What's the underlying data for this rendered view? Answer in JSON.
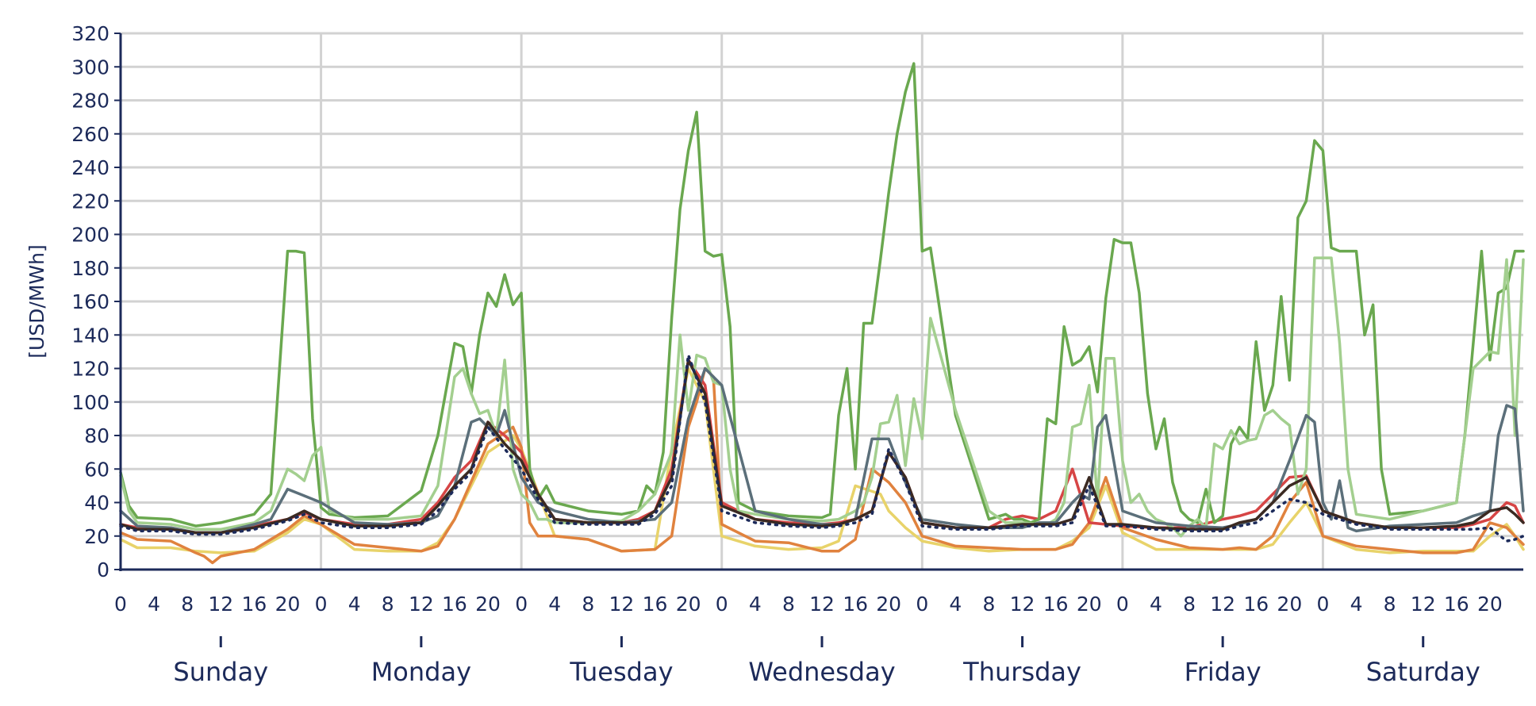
{
  "chart_data": {
    "type": "line",
    "ylabel": "[USD/MWh]",
    "ylim": [
      0,
      320
    ],
    "yticks": [
      0,
      20,
      40,
      60,
      80,
      100,
      120,
      140,
      160,
      180,
      200,
      220,
      240,
      260,
      280,
      300,
      320
    ],
    "hour_ticks": [
      "0",
      "4",
      "8",
      "12",
      "16",
      "20"
    ],
    "days": [
      "Sunday",
      "Monday",
      "Tuesday",
      "Wednesday",
      "Thursday",
      "Friday",
      "Saturday"
    ],
    "hours_per_day": 24,
    "grid": "on",
    "legend": "none",
    "series": [
      {
        "color": "#e8d36a",
        "style": "solid",
        "x": [
          0,
          2,
          6,
          9,
          12,
          16,
          20,
          22,
          24,
          28,
          32,
          36,
          38,
          40,
          44,
          47,
          48,
          52,
          56,
          60,
          64,
          66,
          68,
          70,
          72,
          76,
          80,
          84,
          86,
          88,
          91,
          92,
          94,
          96,
          100,
          104,
          108,
          112,
          114,
          116,
          118,
          120,
          124,
          128,
          132,
          136,
          138,
          140,
          142,
          144,
          148,
          152,
          156,
          160,
          162,
          164,
          166,
          167,
          168
        ],
        "y": [
          18,
          13,
          13,
          11,
          10,
          11,
          22,
          30,
          27,
          12,
          11,
          11,
          16,
          30,
          70,
          80,
          72,
          20,
          18,
          11,
          12,
          72,
          120,
          100,
          20,
          14,
          12,
          13,
          17,
          50,
          45,
          35,
          25,
          17,
          13,
          11,
          12,
          12,
          17,
          25,
          50,
          22,
          12,
          12,
          12,
          12,
          15,
          28,
          40,
          20,
          12,
          10,
          11,
          11,
          11,
          20,
          27,
          20,
          12
        ]
      },
      {
        "color": "#e0823e",
        "style": "solid",
        "x": [
          0,
          2,
          6,
          9,
          10,
          11,
          12,
          16,
          20,
          22,
          24,
          28,
          32,
          36,
          38,
          40,
          44,
          47,
          48,
          49,
          50,
          52,
          56,
          60,
          64,
          66,
          68,
          69,
          70,
          71,
          72,
          76,
          80,
          84,
          86,
          88,
          90,
          92,
          94,
          96,
          100,
          104,
          108,
          112,
          114,
          116,
          118,
          120,
          124,
          128,
          132,
          134,
          136,
          138,
          140,
          142,
          144,
          148,
          152,
          156,
          160,
          162,
          164,
          166,
          167,
          168
        ],
        "y": [
          22,
          18,
          17,
          10,
          8,
          4,
          8,
          12,
          24,
          32,
          27,
          15,
          13,
          11,
          14,
          30,
          75,
          85,
          73,
          28,
          20,
          20,
          18,
          11,
          12,
          20,
          85,
          100,
          120,
          115,
          27,
          17,
          16,
          11,
          11,
          18,
          60,
          52,
          40,
          20,
          14,
          13,
          12,
          12,
          15,
          28,
          55,
          25,
          18,
          13,
          12,
          13,
          12,
          20,
          40,
          52,
          20,
          14,
          12,
          10,
          10,
          12,
          28,
          25,
          20,
          15
        ]
      },
      {
        "color": "#d64545",
        "style": "solid",
        "x": [
          0,
          2,
          6,
          9,
          12,
          16,
          20,
          22,
          24,
          28,
          32,
          36,
          38,
          40,
          42,
          44,
          46,
          48,
          50,
          52,
          56,
          60,
          62,
          64,
          66,
          68,
          70,
          72,
          76,
          80,
          84,
          86,
          88,
          90,
          92,
          94,
          96,
          100,
          104,
          106,
          108,
          110,
          112,
          114,
          116,
          118,
          120,
          124,
          128,
          132,
          134,
          136,
          138,
          140,
          142,
          144,
          148,
          152,
          156,
          160,
          162,
          164,
          166,
          167,
          168
        ],
        "y": [
          27,
          25,
          25,
          22,
          22,
          26,
          30,
          34,
          30,
          27,
          27,
          30,
          40,
          55,
          65,
          88,
          80,
          70,
          45,
          30,
          28,
          28,
          30,
          35,
          60,
          125,
          110,
          40,
          30,
          28,
          27,
          28,
          30,
          35,
          70,
          55,
          28,
          25,
          25,
          30,
          32,
          30,
          35,
          60,
          28,
          27,
          26,
          25,
          25,
          30,
          32,
          35,
          45,
          55,
          56,
          35,
          28,
          25,
          25,
          25,
          27,
          30,
          40,
          38,
          28
        ]
      },
      {
        "color": "#6aa84f",
        "style": "solid",
        "x": [
          0,
          1,
          2,
          6,
          9,
          12,
          16,
          18,
          20,
          21,
          22,
          23,
          24,
          25,
          28,
          32,
          36,
          38,
          40,
          41,
          42,
          43,
          44,
          45,
          46,
          47,
          48,
          49,
          50,
          51,
          52,
          56,
          60,
          62,
          63,
          64,
          65,
          66,
          67,
          68,
          69,
          70,
          71,
          72,
          73,
          74,
          76,
          80,
          84,
          85,
          86,
          87,
          88,
          89,
          90,
          91,
          92,
          93,
          94,
          95,
          96,
          97,
          100,
          104,
          106,
          107,
          108,
          109,
          110,
          111,
          112,
          113,
          114,
          115,
          116,
          117,
          118,
          119,
          120,
          121,
          122,
          123,
          124,
          125,
          126,
          127,
          128,
          129,
          130,
          131,
          132,
          133,
          134,
          135,
          136,
          137,
          138,
          139,
          140,
          141,
          142,
          143,
          144,
          145,
          146,
          147,
          148,
          149,
          150,
          151,
          152,
          156,
          160,
          161,
          162,
          163,
          164,
          165,
          166,
          167,
          168
        ],
        "y": [
          58,
          38,
          31,
          30,
          26,
          28,
          33,
          45,
          190,
          190,
          189,
          90,
          37,
          33,
          31,
          32,
          47,
          80,
          135,
          133,
          105,
          140,
          165,
          157,
          176,
          158,
          165,
          60,
          42,
          50,
          40,
          35,
          33,
          35,
          50,
          45,
          70,
          150,
          215,
          250,
          273,
          190,
          187,
          188,
          145,
          40,
          35,
          32,
          31,
          33,
          92,
          120,
          60,
          147,
          147,
          185,
          225,
          260,
          285,
          302,
          190,
          192,
          92,
          30,
          33,
          30,
          30,
          28,
          30,
          90,
          87,
          145,
          122,
          125,
          133,
          106,
          162,
          197,
          195,
          195,
          165,
          105,
          72,
          90,
          52,
          35,
          30,
          28,
          48,
          28,
          32,
          75,
          85,
          78,
          136,
          95,
          110,
          163,
          113,
          210,
          220,
          256,
          250,
          192,
          190,
          190,
          190,
          140,
          158,
          60,
          33,
          35,
          40,
          80,
          135,
          190,
          125,
          165,
          168,
          190,
          190
        ]
      },
      {
        "color": "#a3cf8f",
        "style": "solid",
        "x": [
          0,
          1,
          2,
          6,
          9,
          12,
          16,
          18,
          20,
          21,
          22,
          23,
          24,
          25,
          28,
          32,
          36,
          38,
          40,
          41,
          42,
          43,
          44,
          45,
          46,
          47,
          48,
          49,
          50,
          51,
          52,
          56,
          60,
          62,
          64,
          66,
          67,
          68,
          69,
          70,
          71,
          72,
          73,
          74,
          76,
          80,
          84,
          86,
          88,
          89,
          90,
          91,
          92,
          93,
          94,
          95,
          96,
          97,
          100,
          104,
          106,
          108,
          110,
          111,
          112,
          113,
          114,
          115,
          116,
          117,
          118,
          119,
          120,
          121,
          122,
          123,
          124,
          125,
          126,
          127,
          128,
          129,
          130,
          131,
          132,
          133,
          134,
          135,
          136,
          137,
          138,
          139,
          140,
          141,
          142,
          143,
          144,
          145,
          146,
          147,
          148,
          152,
          156,
          160,
          162,
          164,
          165,
          166,
          167,
          168
        ],
        "y": [
          56,
          35,
          28,
          27,
          24,
          24,
          28,
          35,
          60,
          57,
          53,
          68,
          73,
          35,
          30,
          30,
          32,
          50,
          115,
          120,
          105,
          93,
          95,
          80,
          125,
          60,
          45,
          40,
          30,
          30,
          28,
          28,
          29,
          35,
          45,
          70,
          140,
          95,
          128,
          126,
          112,
          110,
          60,
          35,
          33,
          30,
          29,
          30,
          35,
          40,
          55,
          87,
          88,
          104,
          62,
          102,
          78,
          150,
          95,
          35,
          28,
          28,
          27,
          27,
          30,
          40,
          85,
          87,
          110,
          40,
          126,
          126,
          65,
          40,
          45,
          35,
          30,
          28,
          25,
          20,
          26,
          30,
          25,
          75,
          72,
          83,
          75,
          77,
          78,
          92,
          95,
          90,
          86,
          45,
          60,
          186,
          186,
          186,
          135,
          60,
          33,
          30,
          35,
          40,
          120,
          130,
          129,
          185,
          80,
          185
        ]
      },
      {
        "color": "#5b6f7a",
        "style": "solid",
        "x": [
          0,
          2,
          6,
          9,
          12,
          16,
          18,
          20,
          22,
          24,
          28,
          32,
          36,
          38,
          40,
          42,
          43,
          44,
          45,
          46,
          47,
          48,
          50,
          52,
          56,
          60,
          64,
          66,
          68,
          70,
          72,
          76,
          80,
          84,
          86,
          88,
          90,
          92,
          94,
          96,
          100,
          104,
          108,
          110,
          112,
          114,
          115,
          116,
          117,
          118,
          120,
          124,
          128,
          132,
          134,
          136,
          138,
          140,
          142,
          143,
          144,
          145,
          146,
          147,
          148,
          152,
          156,
          160,
          162,
          164,
          165,
          166,
          167,
          168
        ],
        "y": [
          35,
          26,
          25,
          22,
          22,
          27,
          30,
          48,
          44,
          40,
          28,
          27,
          28,
          32,
          50,
          88,
          90,
          85,
          80,
          95,
          75,
          55,
          40,
          35,
          30,
          28,
          30,
          40,
          90,
          120,
          110,
          35,
          30,
          27,
          27,
          30,
          78,
          78,
          52,
          30,
          27,
          25,
          25,
          28,
          28,
          40,
          45,
          42,
          85,
          92,
          35,
          28,
          26,
          25,
          27,
          30,
          40,
          65,
          92,
          88,
          40,
          30,
          53,
          25,
          23,
          26,
          27,
          28,
          32,
          35,
          80,
          98,
          96,
          35
        ]
      },
      {
        "color": "#3b2a22",
        "style": "solid",
        "x": [
          0,
          2,
          6,
          9,
          12,
          16,
          20,
          22,
          24,
          28,
          32,
          36,
          38,
          40,
          42,
          44,
          46,
          48,
          50,
          52,
          56,
          60,
          62,
          64,
          66,
          68,
          70,
          72,
          76,
          80,
          84,
          86,
          88,
          90,
          92,
          94,
          96,
          100,
          104,
          108,
          110,
          112,
          114,
          116,
          118,
          120,
          124,
          128,
          132,
          134,
          136,
          138,
          140,
          142,
          144,
          148,
          152,
          156,
          160,
          162,
          164,
          166,
          167,
          168
        ],
        "y": [
          27,
          24,
          24,
          22,
          22,
          25,
          30,
          35,
          30,
          26,
          26,
          28,
          38,
          50,
          60,
          88,
          75,
          65,
          45,
          30,
          28,
          28,
          28,
          35,
          55,
          125,
          105,
          38,
          30,
          27,
          26,
          27,
          30,
          35,
          70,
          55,
          28,
          25,
          25,
          27,
          27,
          27,
          30,
          55,
          27,
          27,
          25,
          24,
          24,
          28,
          30,
          40,
          50,
          55,
          35,
          28,
          25,
          25,
          26,
          28,
          35,
          37,
          33,
          28
        ]
      },
      {
        "color": "#1c2a5a",
        "style": "dotted",
        "x": [
          0,
          2,
          6,
          9,
          12,
          16,
          20,
          22,
          24,
          28,
          32,
          36,
          38,
          40,
          42,
          44,
          46,
          48,
          50,
          52,
          56,
          60,
          62,
          64,
          66,
          68,
          70,
          72,
          76,
          80,
          84,
          86,
          88,
          90,
          92,
          94,
          96,
          100,
          104,
          108,
          110,
          112,
          114,
          116,
          118,
          120,
          124,
          128,
          132,
          134,
          136,
          138,
          140,
          142,
          144,
          148,
          152,
          156,
          160,
          162,
          164,
          166,
          167,
          168
        ],
        "y": [
          26,
          23,
          23,
          21,
          21,
          24,
          29,
          33,
          28,
          25,
          25,
          27,
          35,
          48,
          58,
          85,
          72,
          60,
          42,
          28,
          27,
          27,
          27,
          33,
          50,
          128,
          100,
          35,
          28,
          26,
          25,
          26,
          28,
          33,
          72,
          52,
          26,
          24,
          24,
          26,
          26,
          26,
          28,
          50,
          26,
          26,
          24,
          23,
          23,
          26,
          28,
          35,
          42,
          40,
          33,
          27,
          24,
          24,
          24,
          24,
          25,
          17,
          18,
          20
        ]
      }
    ]
  }
}
